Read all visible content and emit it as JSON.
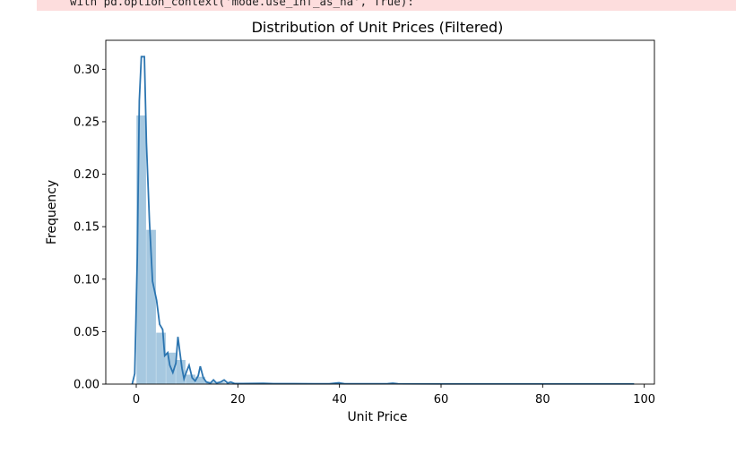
{
  "warning": {
    "code_line": "  with pd.option_context('mode.use_inf_as_na', True):"
  },
  "chart_data": {
    "type": "bar",
    "title": "Distribution of Unit Prices (Filtered)",
    "xlabel": "Unit Price",
    "ylabel": "Frequency",
    "xlim": [
      -6,
      102
    ],
    "ylim": [
      0,
      0.3276
    ],
    "x_ticks": [
      0,
      20,
      40,
      60,
      80,
      100
    ],
    "y_ticks": [
      0.0,
      0.05,
      0.1,
      0.15,
      0.2,
      0.25,
      0.3
    ],
    "x_tick_labels": [
      "0",
      "20",
      "40",
      "60",
      "80",
      "100"
    ],
    "y_tick_labels": [
      "0.00",
      "0.05",
      "0.10",
      "0.15",
      "0.20",
      "0.25",
      "0.30"
    ],
    "histogram": {
      "color": "#a6c8e0",
      "bin_width": 1.94,
      "bins": [
        [
          0.04,
          0.256
        ],
        [
          1.98,
          0.147
        ],
        [
          3.92,
          0.049
        ],
        [
          5.86,
          0.03
        ],
        [
          7.8,
          0.023
        ],
        [
          9.74,
          0.009
        ],
        [
          11.68,
          0.007
        ],
        [
          13.62,
          0.002
        ],
        [
          15.56,
          0.002
        ],
        [
          17.5,
          0.001
        ],
        [
          19.44,
          0.0008
        ],
        [
          21.38,
          0.0004
        ],
        [
          23.32,
          0.0003
        ],
        [
          25.26,
          0.0003
        ],
        [
          27.2,
          0.0002
        ],
        [
          29.14,
          0.0002
        ],
        [
          31.08,
          0.0001
        ],
        [
          33.02,
          0.0001
        ],
        [
          34.96,
          0.0001
        ],
        [
          36.9,
          0.0001
        ],
        [
          38.84,
          0.0008
        ],
        [
          40.78,
          0.0001
        ],
        [
          42.72,
          0.0001
        ],
        [
          44.66,
          0.0001
        ],
        [
          46.6,
          0.0001
        ],
        [
          48.54,
          0.0005
        ],
        [
          50.48,
          0.0001
        ],
        [
          52.42,
          0.0001
        ],
        [
          54.36,
          0.0001
        ],
        [
          56.3,
          0.0001
        ],
        [
          58.24,
          0.0001
        ],
        [
          60.18,
          0.0001
        ],
        [
          62.12,
          0.0001
        ],
        [
          64.06,
          0.0001
        ],
        [
          66.0,
          0.0001
        ],
        [
          67.94,
          0.0001
        ],
        [
          69.88,
          0.0001
        ],
        [
          71.82,
          0.0001
        ],
        [
          73.76,
          0.0001
        ],
        [
          75.7,
          0.0001
        ],
        [
          77.64,
          0.0001
        ],
        [
          79.58,
          0.0001
        ],
        [
          81.52,
          0.0001
        ],
        [
          83.46,
          0.0001
        ],
        [
          85.4,
          0.0001
        ],
        [
          87.34,
          0.0001
        ],
        [
          89.28,
          0.0001
        ],
        [
          91.22,
          0.0001
        ],
        [
          93.16,
          0.0001
        ],
        [
          95.1,
          0.0001
        ]
      ]
    },
    "kde": {
      "color": "#2c75b0",
      "points": [
        [
          -0.8,
          0.0
        ],
        [
          -0.3,
          0.01
        ],
        [
          0.2,
          0.12
        ],
        [
          0.6,
          0.27
        ],
        [
          1.0,
          0.312
        ],
        [
          1.6,
          0.312
        ],
        [
          2.0,
          0.23
        ],
        [
          2.6,
          0.155
        ],
        [
          3.2,
          0.098
        ],
        [
          4.0,
          0.08
        ],
        [
          4.6,
          0.057
        ],
        [
          5.2,
          0.052
        ],
        [
          5.6,
          0.027
        ],
        [
          6.2,
          0.03
        ],
        [
          6.6,
          0.018
        ],
        [
          7.2,
          0.011
        ],
        [
          7.8,
          0.02
        ],
        [
          8.2,
          0.045
        ],
        [
          8.6,
          0.03
        ],
        [
          9.0,
          0.015
        ],
        [
          9.4,
          0.005
        ],
        [
          9.9,
          0.012
        ],
        [
          10.4,
          0.018
        ],
        [
          11.0,
          0.006
        ],
        [
          11.6,
          0.003
        ],
        [
          12.2,
          0.008
        ],
        [
          12.6,
          0.017
        ],
        [
          13.2,
          0.006
        ],
        [
          13.8,
          0.002
        ],
        [
          14.6,
          0.001
        ],
        [
          15.2,
          0.004
        ],
        [
          15.8,
          0.001
        ],
        [
          16.6,
          0.002
        ],
        [
          17.3,
          0.004
        ],
        [
          18.0,
          0.001
        ],
        [
          18.6,
          0.002
        ],
        [
          19.4,
          0.0005
        ],
        [
          21.0,
          0.0005
        ],
        [
          25.0,
          0.0007
        ],
        [
          27.0,
          0.0004
        ],
        [
          31.0,
          0.0004
        ],
        [
          35.0,
          0.0003
        ],
        [
          38.0,
          0.0003
        ],
        [
          39.9,
          0.0012
        ],
        [
          41.0,
          0.0003
        ],
        [
          45.0,
          0.0003
        ],
        [
          49.5,
          0.0004
        ],
        [
          50.5,
          0.0008
        ],
        [
          51.5,
          0.0003
        ],
        [
          60.0,
          0.0002
        ],
        [
          70.0,
          0.0002
        ],
        [
          80.0,
          0.0002
        ],
        [
          90.0,
          0.0002
        ],
        [
          98.0,
          0.0002
        ]
      ]
    }
  }
}
